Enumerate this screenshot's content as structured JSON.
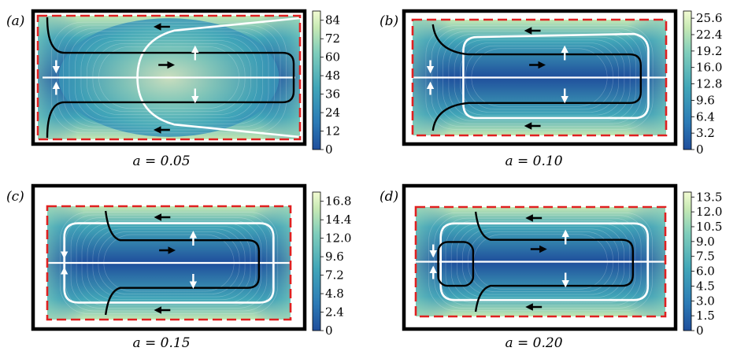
{
  "figure": {
    "panels": [
      {
        "label": "(a)",
        "caption": "a = 0.05"
      },
      {
        "label": "(b)",
        "caption": "a = 0.10"
      },
      {
        "label": "(c)",
        "caption": "a = 0.15"
      },
      {
        "label": "(d)",
        "caption": "a = 0.20"
      }
    ]
  },
  "colors": {
    "colormap": [
      "#1f4e9c",
      "#2c7bb6",
      "#41a6b8",
      "#7fcdbb",
      "#c7e9b4",
      "#f2fbd2"
    ],
    "outer_border": "#000000",
    "dashed_border": "#e02020",
    "white_curve": "#ffffff",
    "black_curve": "#000000"
  },
  "chart_data": [
    {
      "type": "heatmap",
      "panel": "a",
      "title": "a = 0.05",
      "colorbar": {
        "ticks": [
          "0",
          "12",
          "24",
          "36",
          "48",
          "60",
          "72",
          "84"
        ],
        "range": [
          0,
          90
        ]
      }
    },
    {
      "type": "heatmap",
      "panel": "b",
      "title": "a = 0.10",
      "colorbar": {
        "ticks": [
          "0",
          "3.2",
          "6.4",
          "9.6",
          "12.8",
          "16.0",
          "19.2",
          "22.4",
          "25.6"
        ],
        "range": [
          0,
          27
        ]
      }
    },
    {
      "type": "heatmap",
      "panel": "c",
      "title": "a = 0.15",
      "colorbar": {
        "ticks": [
          "0",
          "2.4",
          "4.8",
          "7.2",
          "9.6",
          "12.0",
          "14.4",
          "16.8"
        ],
        "range": [
          0,
          18
        ]
      }
    },
    {
      "type": "heatmap",
      "panel": "d",
      "title": "a = 0.20",
      "colorbar": {
        "ticks": [
          "0",
          "1.5",
          "3.0",
          "4.5",
          "6.0",
          "7.5",
          "9.0",
          "10.5",
          "12.0",
          "13.5"
        ],
        "range": [
          0,
          14
        ]
      }
    }
  ]
}
